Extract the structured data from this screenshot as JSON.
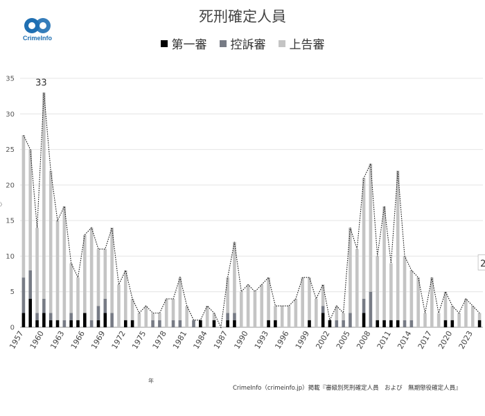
{
  "logo": {
    "text": "CrimeInfo",
    "color": "#1f6fb2"
  },
  "title": "死刑確定人員",
  "legend": [
    {
      "label": "第一審",
      "color": "#000000"
    },
    {
      "label": "控訴審",
      "color": "#777b85"
    },
    {
      "label": "上告審",
      "color": "#c4c4c4"
    }
  ],
  "year_unit": "年",
  "caption": "CrimeInfo（crimeinfo.jp）掲載『審級別死刑確定人員　および　無期懲役確定人員』",
  "y_axis_marker": "〉",
  "annotations": [
    {
      "year": 1960,
      "text": "33"
    },
    {
      "year": 2024,
      "text": "2"
    }
  ],
  "chart_data": {
    "type": "bar",
    "stacked": true,
    "overlay_line": "total (dotted)",
    "title": "死刑確定人員",
    "ylim": [
      0,
      35
    ],
    "yticks": [
      0,
      5,
      10,
      15,
      20,
      25,
      30,
      35
    ],
    "xtick_labels": [
      "1957",
      "1960",
      "1963",
      "1966",
      "1969",
      "1972",
      "1975",
      "1978",
      "1981",
      "1984",
      "1987",
      "1990",
      "1993",
      "1996",
      "1999",
      "2002",
      "2005",
      "2008",
      "2011",
      "2014",
      "2017",
      "2020",
      "2023"
    ],
    "categories": [
      1957,
      1958,
      1959,
      1960,
      1961,
      1962,
      1963,
      1964,
      1965,
      1966,
      1967,
      1968,
      1969,
      1970,
      1971,
      1972,
      1973,
      1974,
      1975,
      1976,
      1977,
      1978,
      1979,
      1980,
      1981,
      1982,
      1983,
      1984,
      1985,
      1986,
      1987,
      1988,
      1989,
      1990,
      1991,
      1992,
      1993,
      1994,
      1995,
      1996,
      1997,
      1998,
      1999,
      2000,
      2001,
      2002,
      2003,
      2004,
      2005,
      2006,
      2007,
      2008,
      2009,
      2010,
      2011,
      2012,
      2013,
      2014,
      2015,
      2016,
      2017,
      2018,
      2019,
      2020,
      2021,
      2022,
      2023,
      2024
    ],
    "series": [
      {
        "name": "第一審",
        "values": [
          2,
          4,
          1,
          2,
          1,
          1,
          0,
          1,
          1,
          2,
          0,
          1,
          2,
          0,
          0,
          1,
          1,
          0,
          0,
          0,
          0,
          0,
          0,
          0,
          0,
          0,
          1,
          0,
          1,
          0,
          1,
          1,
          0,
          0,
          0,
          0,
          1,
          1,
          0,
          0,
          0,
          0,
          1,
          0,
          2,
          1,
          0,
          0,
          0,
          0,
          2,
          0,
          1,
          1,
          1,
          1,
          0,
          0,
          0,
          0,
          0,
          0,
          1,
          1,
          0,
          0,
          0,
          1
        ]
      },
      {
        "name": "控訴審",
        "values": [
          5,
          4,
          1,
          2,
          1,
          0,
          1,
          1,
          0,
          0,
          1,
          2,
          2,
          2,
          0,
          0,
          0,
          0,
          0,
          1,
          1,
          0,
          1,
          1,
          0,
          1,
          0,
          0,
          0,
          0,
          1,
          1,
          0,
          0,
          0,
          0,
          0,
          0,
          0,
          0,
          0,
          0,
          0,
          0,
          1,
          0,
          1,
          1,
          2,
          0,
          2,
          5,
          0,
          0,
          0,
          0,
          1,
          1,
          0,
          0,
          0,
          0,
          0,
          0,
          0,
          0,
          0,
          0
        ]
      },
      {
        "name": "上告審",
        "values": [
          20,
          17,
          12,
          29,
          20,
          14,
          16,
          7,
          6,
          11,
          13,
          8,
          7,
          12,
          6,
          7,
          3,
          2,
          3,
          1,
          1,
          4,
          3,
          6,
          3,
          0,
          0,
          3,
          1,
          0,
          5,
          10,
          5,
          6,
          5,
          6,
          6,
          2,
          3,
          3,
          4,
          7,
          6,
          4,
          3,
          0,
          2,
          1,
          12,
          11,
          17,
          18,
          9,
          16,
          8,
          21,
          9,
          7,
          7,
          2,
          7,
          2,
          4,
          2,
          2,
          4,
          3,
          1
        ]
      }
    ]
  }
}
